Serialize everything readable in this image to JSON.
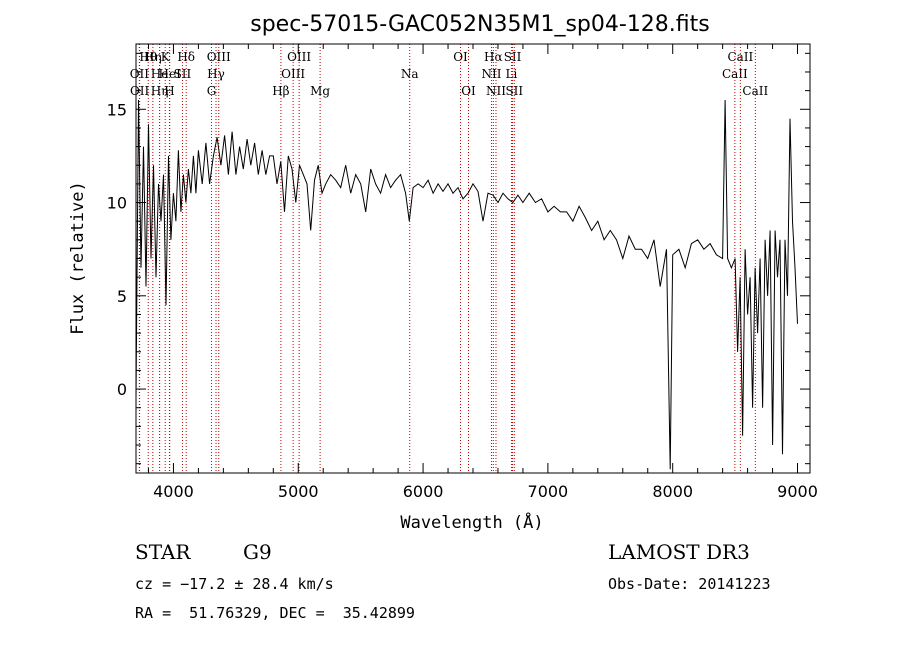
{
  "chart_data": {
    "type": "line",
    "title": "spec-57015-GAC052N35M1_sp04-128.fits",
    "xlabel": "Wavelength (Å)",
    "ylabel": "Flux (relative)",
    "xlim": [
      3700,
      9100
    ],
    "ylim": [
      -4.5,
      18.5
    ],
    "xticks": [
      4000,
      5000,
      6000,
      7000,
      8000,
      9000
    ],
    "yticks": [
      0,
      5,
      10,
      15
    ],
    "grid": false,
    "series": [
      {
        "name": "spectrum",
        "x": [
          3700,
          3720,
          3740,
          3760,
          3780,
          3800,
          3820,
          3840,
          3860,
          3880,
          3900,
          3920,
          3940,
          3960,
          3980,
          4000,
          4020,
          4040,
          4060,
          4080,
          4100,
          4120,
          4140,
          4160,
          4180,
          4200,
          4230,
          4260,
          4290,
          4320,
          4350,
          4380,
          4410,
          4440,
          4470,
          4500,
          4530,
          4560,
          4590,
          4620,
          4650,
          4680,
          4710,
          4740,
          4770,
          4800,
          4830,
          4860,
          4890,
          4920,
          4950,
          4980,
          5010,
          5040,
          5070,
          5100,
          5130,
          5160,
          5190,
          5220,
          5260,
          5300,
          5340,
          5380,
          5420,
          5460,
          5500,
          5540,
          5580,
          5620,
          5660,
          5700,
          5740,
          5780,
          5820,
          5860,
          5890,
          5920,
          5960,
          6000,
          6040,
          6080,
          6120,
          6160,
          6200,
          6240,
          6280,
          6320,
          6360,
          6400,
          6440,
          6480,
          6520,
          6560,
          6600,
          6640,
          6680,
          6720,
          6760,
          6800,
          6850,
          6900,
          6950,
          7000,
          7050,
          7100,
          7150,
          7200,
          7250,
          7300,
          7350,
          7400,
          7450,
          7500,
          7550,
          7600,
          7650,
          7700,
          7750,
          7800,
          7850,
          7900,
          7950,
          7980,
          8000,
          8050,
          8100,
          8150,
          8200,
          8250,
          8300,
          8350,
          8400,
          8420,
          8440,
          8470,
          8500,
          8520,
          8540,
          8560,
          8580,
          8600,
          8620,
          8640,
          8660,
          8680,
          8700,
          8720,
          8740,
          8760,
          8780,
          8800,
          8820,
          8840,
          8860,
          8880,
          8900,
          8920,
          8940,
          8960,
          8980,
          9000
        ],
        "values": [
          -0.5,
          15.5,
          6.5,
          13.0,
          5.5,
          14.2,
          7.0,
          12.0,
          6.0,
          11.0,
          9.0,
          11.5,
          4.5,
          12.5,
          8.0,
          10.5,
          9.0,
          12.8,
          9.5,
          11.5,
          10.0,
          11.8,
          10.5,
          12.5,
          10.5,
          12.8,
          11.0,
          13.2,
          11.0,
          12.5,
          13.5,
          12.0,
          13.6,
          11.5,
          13.8,
          11.5,
          13.0,
          11.8,
          13.4,
          12.0,
          13.2,
          11.5,
          12.8,
          11.5,
          12.5,
          12.5,
          11.0,
          12.2,
          9.5,
          12.5,
          11.8,
          10.0,
          12.0,
          11.5,
          11.0,
          8.5,
          11.2,
          12.0,
          10.5,
          11.0,
          11.5,
          11.2,
          10.8,
          12.0,
          10.5,
          11.5,
          11.0,
          9.5,
          11.8,
          11.0,
          10.5,
          11.5,
          10.8,
          11.2,
          11.5,
          10.5,
          9.0,
          10.8,
          11.0,
          10.8,
          11.2,
          10.5,
          11.0,
          10.6,
          11.0,
          10.5,
          10.8,
          10.2,
          10.5,
          11.0,
          10.6,
          9.0,
          10.5,
          10.4,
          10.0,
          10.5,
          10.2,
          10.0,
          10.4,
          10.0,
          10.5,
          10.0,
          10.2,
          9.5,
          9.8,
          9.5,
          9.5,
          9.0,
          9.8,
          9.2,
          8.5,
          9.0,
          8.0,
          8.5,
          8.0,
          7.0,
          8.2,
          7.5,
          7.5,
          7.0,
          8.0,
          5.5,
          7.5,
          -4.3,
          7.2,
          7.5,
          6.5,
          7.8,
          8.0,
          7.5,
          7.8,
          7.2,
          7.0,
          15.5,
          7.0,
          6.5,
          7.0,
          2.0,
          6.0,
          -2.5,
          7.5,
          4.0,
          6.0,
          -1.0,
          6.5,
          3.0,
          7.0,
          -1.0,
          8.0,
          5.0,
          8.5,
          -3.0,
          8.5,
          6.0,
          8.0,
          -3.5,
          8.0,
          5.0,
          14.5,
          9.0,
          6.5,
          3.5
        ]
      }
    ],
    "lines": [
      {
        "label": "Hθ",
        "wl": 3798,
        "row": 1
      },
      {
        "label": "OII",
        "wl": 3727,
        "row": 2
      },
      {
        "label": "OII",
        "wl": 3729,
        "row": 3
      },
      {
        "label": "Hη",
        "wl": 3835,
        "row": 1
      },
      {
        "label": "He",
        "wl": 3889,
        "row": 2
      },
      {
        "label": "Hη",
        "wl": 3889,
        "row": 3
      },
      {
        "label": "K",
        "wl": 3934,
        "row": 1
      },
      {
        "label": "HeI",
        "wl": 3970,
        "row": 2
      },
      {
        "label": "H",
        "wl": 3968,
        "row": 3
      },
      {
        "label": "SII",
        "wl": 4072,
        "row": 2
      },
      {
        "label": "Hδ",
        "wl": 4102,
        "row": 1
      },
      {
        "label": "OIII",
        "wl": 4363,
        "row": 1
      },
      {
        "label": "Hγ",
        "wl": 4341,
        "row": 2
      },
      {
        "label": "G",
        "wl": 4305,
        "row": 3
      },
      {
        "label": "Hβ",
        "wl": 4861,
        "row": 3
      },
      {
        "label": "OIII",
        "wl": 4959,
        "row": 2
      },
      {
        "label": "OIII",
        "wl": 5007,
        "row": 1
      },
      {
        "label": "Mg",
        "wl": 5175,
        "row": 3
      },
      {
        "label": "Na",
        "wl": 5893,
        "row": 2
      },
      {
        "label": "OI",
        "wl": 6300,
        "row": 1
      },
      {
        "label": "OI",
        "wl": 6364,
        "row": 3
      },
      {
        "label": "NII",
        "wl": 6548,
        "row": 2
      },
      {
        "label": "Hα",
        "wl": 6563,
        "row": 1
      },
      {
        "label": "NII",
        "wl": 6584,
        "row": 3
      },
      {
        "label": "Li",
        "wl": 6708,
        "row": 2
      },
      {
        "label": "SII",
        "wl": 6717,
        "row": 1
      },
      {
        "label": "SII",
        "wl": 6731,
        "row": 3
      },
      {
        "label": "CaII",
        "wl": 8498,
        "row": 2
      },
      {
        "label": "CaII",
        "wl": 8542,
        "row": 1
      },
      {
        "label": "CaII",
        "wl": 8662,
        "row": 3
      }
    ],
    "line_color": "#c00000"
  },
  "info": {
    "class": "STAR",
    "subclass": "G9",
    "survey": "LAMOST DR3",
    "cz": "cz = −17.2 ± 28.4 km/s",
    "obs_date": "Obs-Date: 20141223",
    "coords": "RA =  51.76329, DEC =  35.42899"
  }
}
